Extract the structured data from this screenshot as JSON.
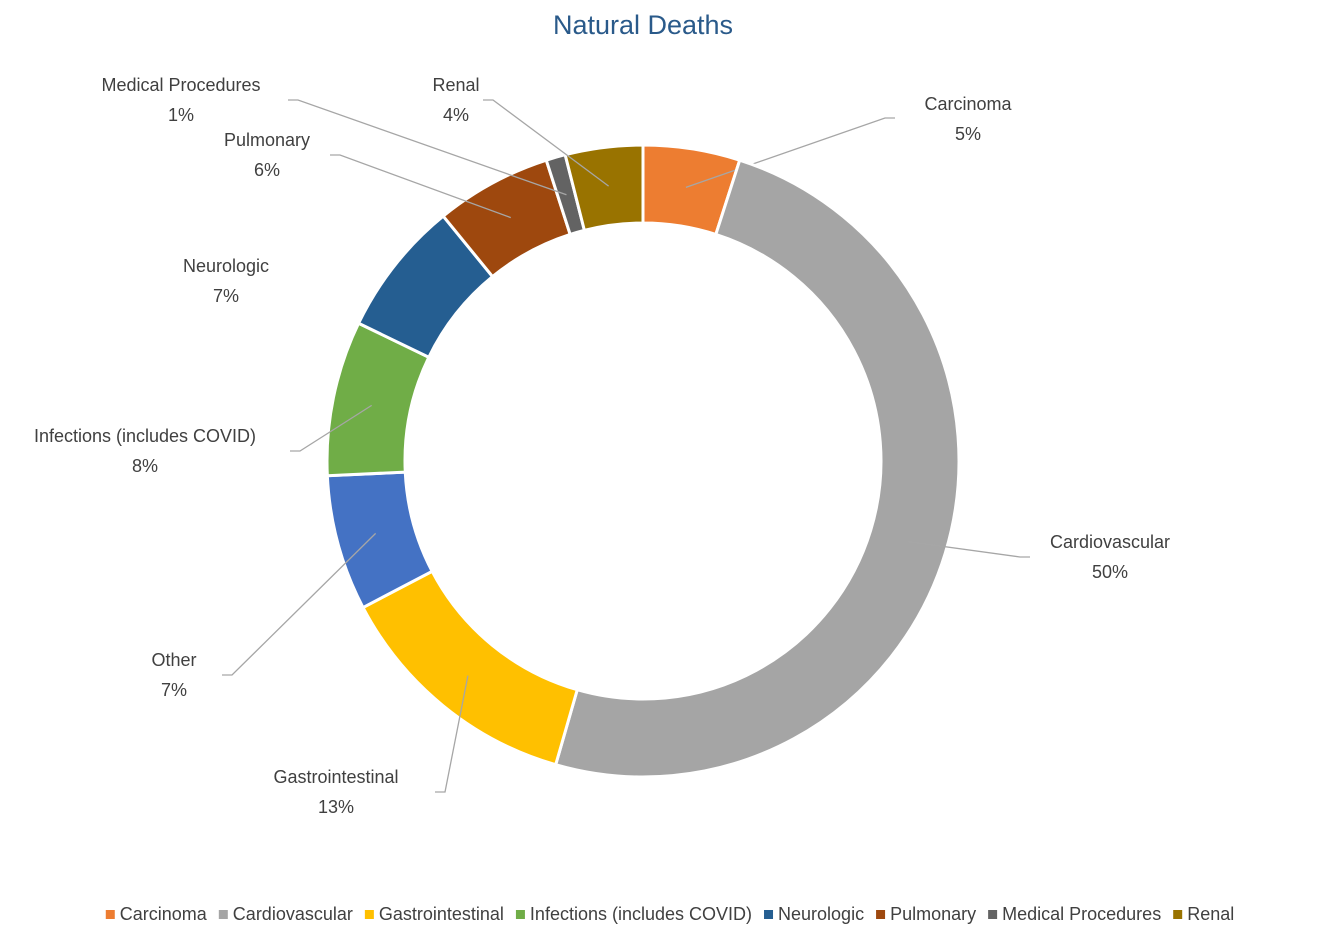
{
  "chart_data": {
    "type": "donut",
    "title": "Natural Deaths",
    "categories": [
      "Carcinoma",
      "Cardiovascular",
      "Gastrointestinal",
      "Other",
      "Infections (includes COVID)",
      "Neurologic",
      "Pulmonary",
      "Medical Procedures",
      "Renal"
    ],
    "values": [
      5,
      50,
      13,
      7,
      8,
      7,
      6,
      1,
      4
    ],
    "value_labels": [
      "5%",
      "50%",
      "13%",
      "7%",
      "8%",
      "7%",
      "6%",
      "1%",
      "4%"
    ],
    "colors": [
      "#ed7d31",
      "#a5a5a5",
      "#ffc000",
      "#4472c4",
      "#70ad47",
      "#255e91",
      "#9e480e",
      "#636363",
      "#997300"
    ],
    "legend": [
      "Carcinoma",
      "Cardiovascular",
      "Gastrointestinal",
      "Infections (includes COVID)",
      "Neurologic",
      "Pulmonary",
      "Medical Procedures",
      "Renal"
    ],
    "legend_position": "bottom"
  }
}
